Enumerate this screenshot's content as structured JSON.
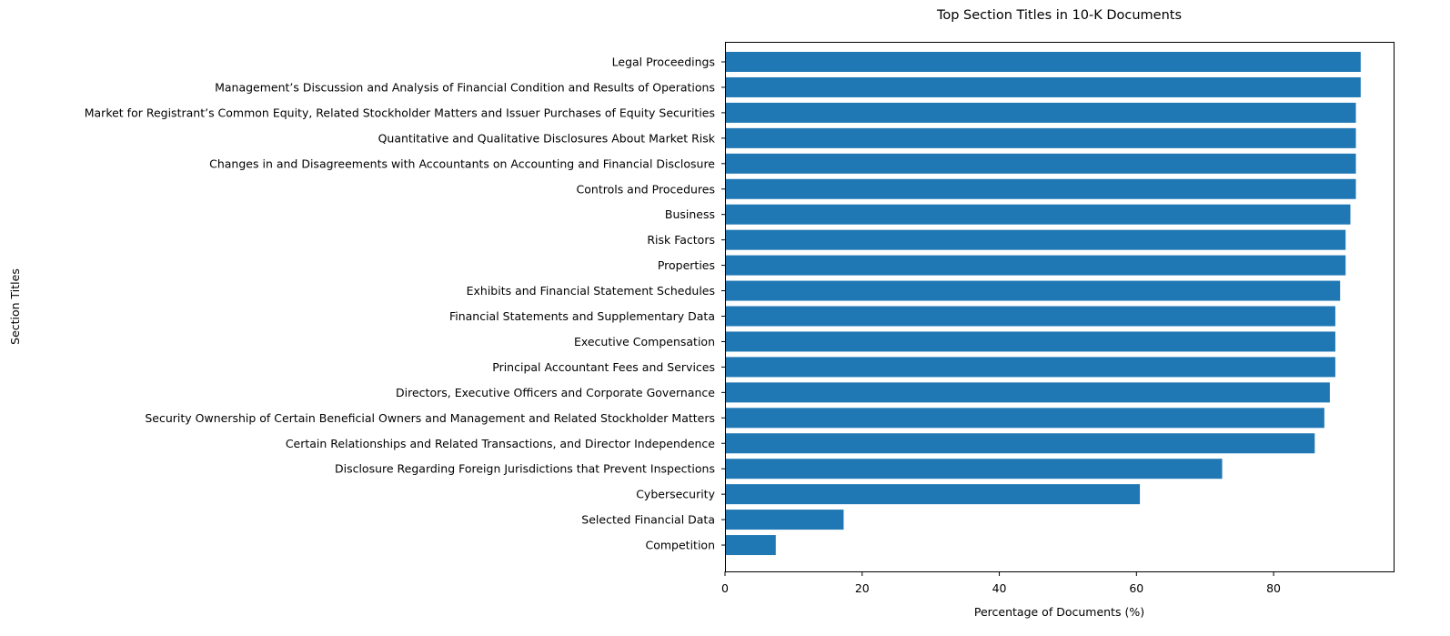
{
  "chart_data": {
    "type": "bar",
    "orientation": "horizontal",
    "title": "Top Section Titles in 10-K Documents",
    "xlabel": "Percentage of Documents (%)",
    "ylabel": "Section Titles",
    "xlim": [
      0,
      97.5
    ],
    "xticks": [
      0,
      20,
      40,
      60,
      80
    ],
    "xtick_labels": [
      "0",
      "20",
      "40",
      "60",
      "80"
    ],
    "grid": false,
    "bar_color": "#1f77b4",
    "categories": [
      "Legal Proceedings",
      "Management’s Discussion and Analysis of Financial Condition and Results of Operations",
      "Market for Registrant’s Common Equity, Related Stockholder Matters and Issuer Purchases of Equity Securities",
      "Quantitative and Qualitative Disclosures About Market Risk",
      "Changes in and Disagreements with Accountants on Accounting and Financial Disclosure",
      "Controls and Procedures",
      "Business",
      "Risk Factors",
      "Properties",
      "Exhibits and Financial Statement Schedules",
      "Financial Statements and Supplementary Data",
      "Executive Compensation",
      "Principal Accountant Fees and Services",
      "Directors, Executive Officers and Corporate Governance",
      "Security Ownership of Certain Beneficial Owners and Management and Related Stockholder Matters",
      "Certain Relationships and Related Transactions, and Director Independence",
      "Disclosure Regarding Foreign Jurisdictions that Prevent Inspections",
      "Cybersecurity",
      "Selected Financial Data",
      "Competition"
    ],
    "values": [
      92.7,
      92.7,
      92.0,
      92.0,
      92.0,
      92.0,
      91.2,
      90.5,
      90.5,
      89.7,
      89.0,
      89.0,
      89.0,
      88.2,
      87.4,
      86.0,
      72.5,
      60.5,
      17.3,
      7.4
    ]
  }
}
